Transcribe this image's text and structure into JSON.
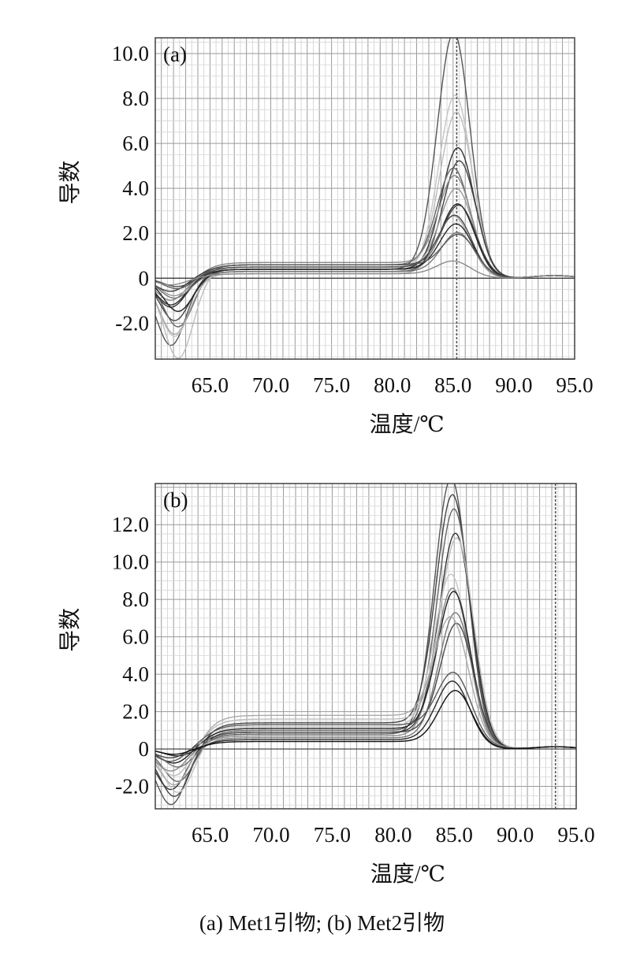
{
  "caption": "(a) Met1引物; (b) Met2引物",
  "chart_data": [
    {
      "type": "line",
      "panel_label": "(a)",
      "xlabel": "温度/℃",
      "ylabel": "导数",
      "xlim": [
        60.5,
        95.0
      ],
      "ylim": [
        -3.6,
        10.7
      ],
      "x_ticks": [
        65.0,
        70.0,
        75.0,
        80.0,
        85.0,
        90.0,
        95.0
      ],
      "x_tick_labels": [
        "65.0",
        "70.0",
        "75.0",
        "80.0",
        "85.0",
        "90.0",
        "95.0"
      ],
      "y_ticks": [
        -2.0,
        0,
        2.0,
        4.0,
        6.0,
        8.0,
        10.0
      ],
      "y_tick_labels": [
        "-2.0",
        "0",
        "2.0",
        "4.0",
        "6.0",
        "8.0",
        "10.0"
      ],
      "vline_x": 85.3,
      "grid": true,
      "peak_x": 85.3,
      "series": [
        {
          "peak": 10.6,
          "dip": -3.0,
          "plateau": 0.4,
          "color": "#555555"
        },
        {
          "peak": 7.9,
          "dip": -2.6,
          "plateau": 0.3,
          "color": "#c4c4c4"
        },
        {
          "peak": 7.0,
          "dip": -3.6,
          "plateau": 0.5,
          "color": "#bdbdbd"
        },
        {
          "peak": 5.5,
          "dip": -1.3,
          "plateau": 0.4,
          "color": "#333333"
        },
        {
          "peak": 5.0,
          "dip": -1.9,
          "plateau": 0.3,
          "color": "#444444"
        },
        {
          "peak": 4.4,
          "dip": -2.2,
          "plateau": 0.6,
          "color": "#666666"
        },
        {
          "peak": 4.0,
          "dip": -1.0,
          "plateau": 0.7,
          "color": "#888888"
        },
        {
          "peak": 3.6,
          "dip": -0.8,
          "plateau": 0.5,
          "color": "#999999"
        },
        {
          "peak": 3.0,
          "dip": -1.5,
          "plateau": 0.4,
          "color": "#222222"
        },
        {
          "peak": 2.8,
          "dip": -0.6,
          "plateau": 0.6,
          "color": "#3c3c3c"
        },
        {
          "peak": 2.6,
          "dip": -2.5,
          "plateau": 0.2,
          "color": "#aaaaaa"
        },
        {
          "peak": 2.4,
          "dip": -0.4,
          "plateau": 0.5,
          "color": "#4a4a4a"
        },
        {
          "peak": 2.1,
          "dip": -1.2,
          "plateau": 0.4,
          "color": "#2a2a2a"
        },
        {
          "peak": 1.8,
          "dip": -0.9,
          "plateau": 0.3,
          "color": "#777777"
        },
        {
          "peak": 1.5,
          "dip": -0.5,
          "plateau": 0.6,
          "color": "#5a5a5a"
        },
        {
          "peak": 0.6,
          "dip": -0.3,
          "plateau": 0.2,
          "color": "#8a8a8a"
        }
      ]
    },
    {
      "type": "line",
      "panel_label": "(b)",
      "xlabel": "温度/℃",
      "ylabel": "导数",
      "xlim": [
        60.5,
        95.0
      ],
      "ylim": [
        -3.2,
        14.2
      ],
      "x_ticks": [
        65.0,
        70.0,
        75.0,
        80.0,
        85.0,
        90.0,
        95.0
      ],
      "x_tick_labels": [
        "65.0",
        "70.0",
        "75.0",
        "80.0",
        "85.0",
        "90.0",
        "95.0"
      ],
      "y_ticks": [
        -2.0,
        0,
        2.0,
        4.0,
        6.0,
        8.0,
        10.0,
        12.0
      ],
      "y_tick_labels": [
        "-2.0",
        "0",
        "2.0",
        "4.0",
        "6.0",
        "8.0",
        "10.0",
        "12.0"
      ],
      "vline_x": 93.3,
      "grid": true,
      "peak_x": 85.0,
      "series": [
        {
          "peak": 13.8,
          "dip": -3.0,
          "plateau": 0.8,
          "color": "#555555"
        },
        {
          "peak": 12.4,
          "dip": -2.6,
          "plateau": 1.4,
          "color": "#444444"
        },
        {
          "peak": 12.0,
          "dip": -1.8,
          "plateau": 1.0,
          "color": "#666666"
        },
        {
          "peak": 10.8,
          "dip": -2.2,
          "plateau": 0.9,
          "color": "#333333"
        },
        {
          "peak": 10.0,
          "dip": -1.5,
          "plateau": 1.6,
          "color": "#bdbdbd"
        },
        {
          "peak": 8.3,
          "dip": -2.4,
          "plateau": 1.2,
          "color": "#c4c4c4"
        },
        {
          "peak": 8.0,
          "dip": -1.2,
          "plateau": 0.7,
          "color": "#888888"
        },
        {
          "peak": 7.5,
          "dip": -0.8,
          "plateau": 1.1,
          "color": "#222222"
        },
        {
          "peak": 6.8,
          "dip": -1.0,
          "plateau": 0.6,
          "color": "#777777"
        },
        {
          "peak": 6.0,
          "dip": -0.5,
          "plateau": 0.9,
          "color": "#4a4a4a"
        },
        {
          "peak": 5.5,
          "dip": -2.0,
          "plateau": 1.8,
          "color": "#aaaaaa"
        },
        {
          "peak": 3.2,
          "dip": -0.4,
          "plateau": 0.5,
          "color": "#2a2a2a"
        },
        {
          "peak": 3.0,
          "dip": -0.7,
          "plateau": 1.3,
          "color": "#5a5a5a"
        },
        {
          "peak": 2.8,
          "dip": -0.3,
          "plateau": 0.4,
          "color": "#111111"
        }
      ]
    }
  ]
}
